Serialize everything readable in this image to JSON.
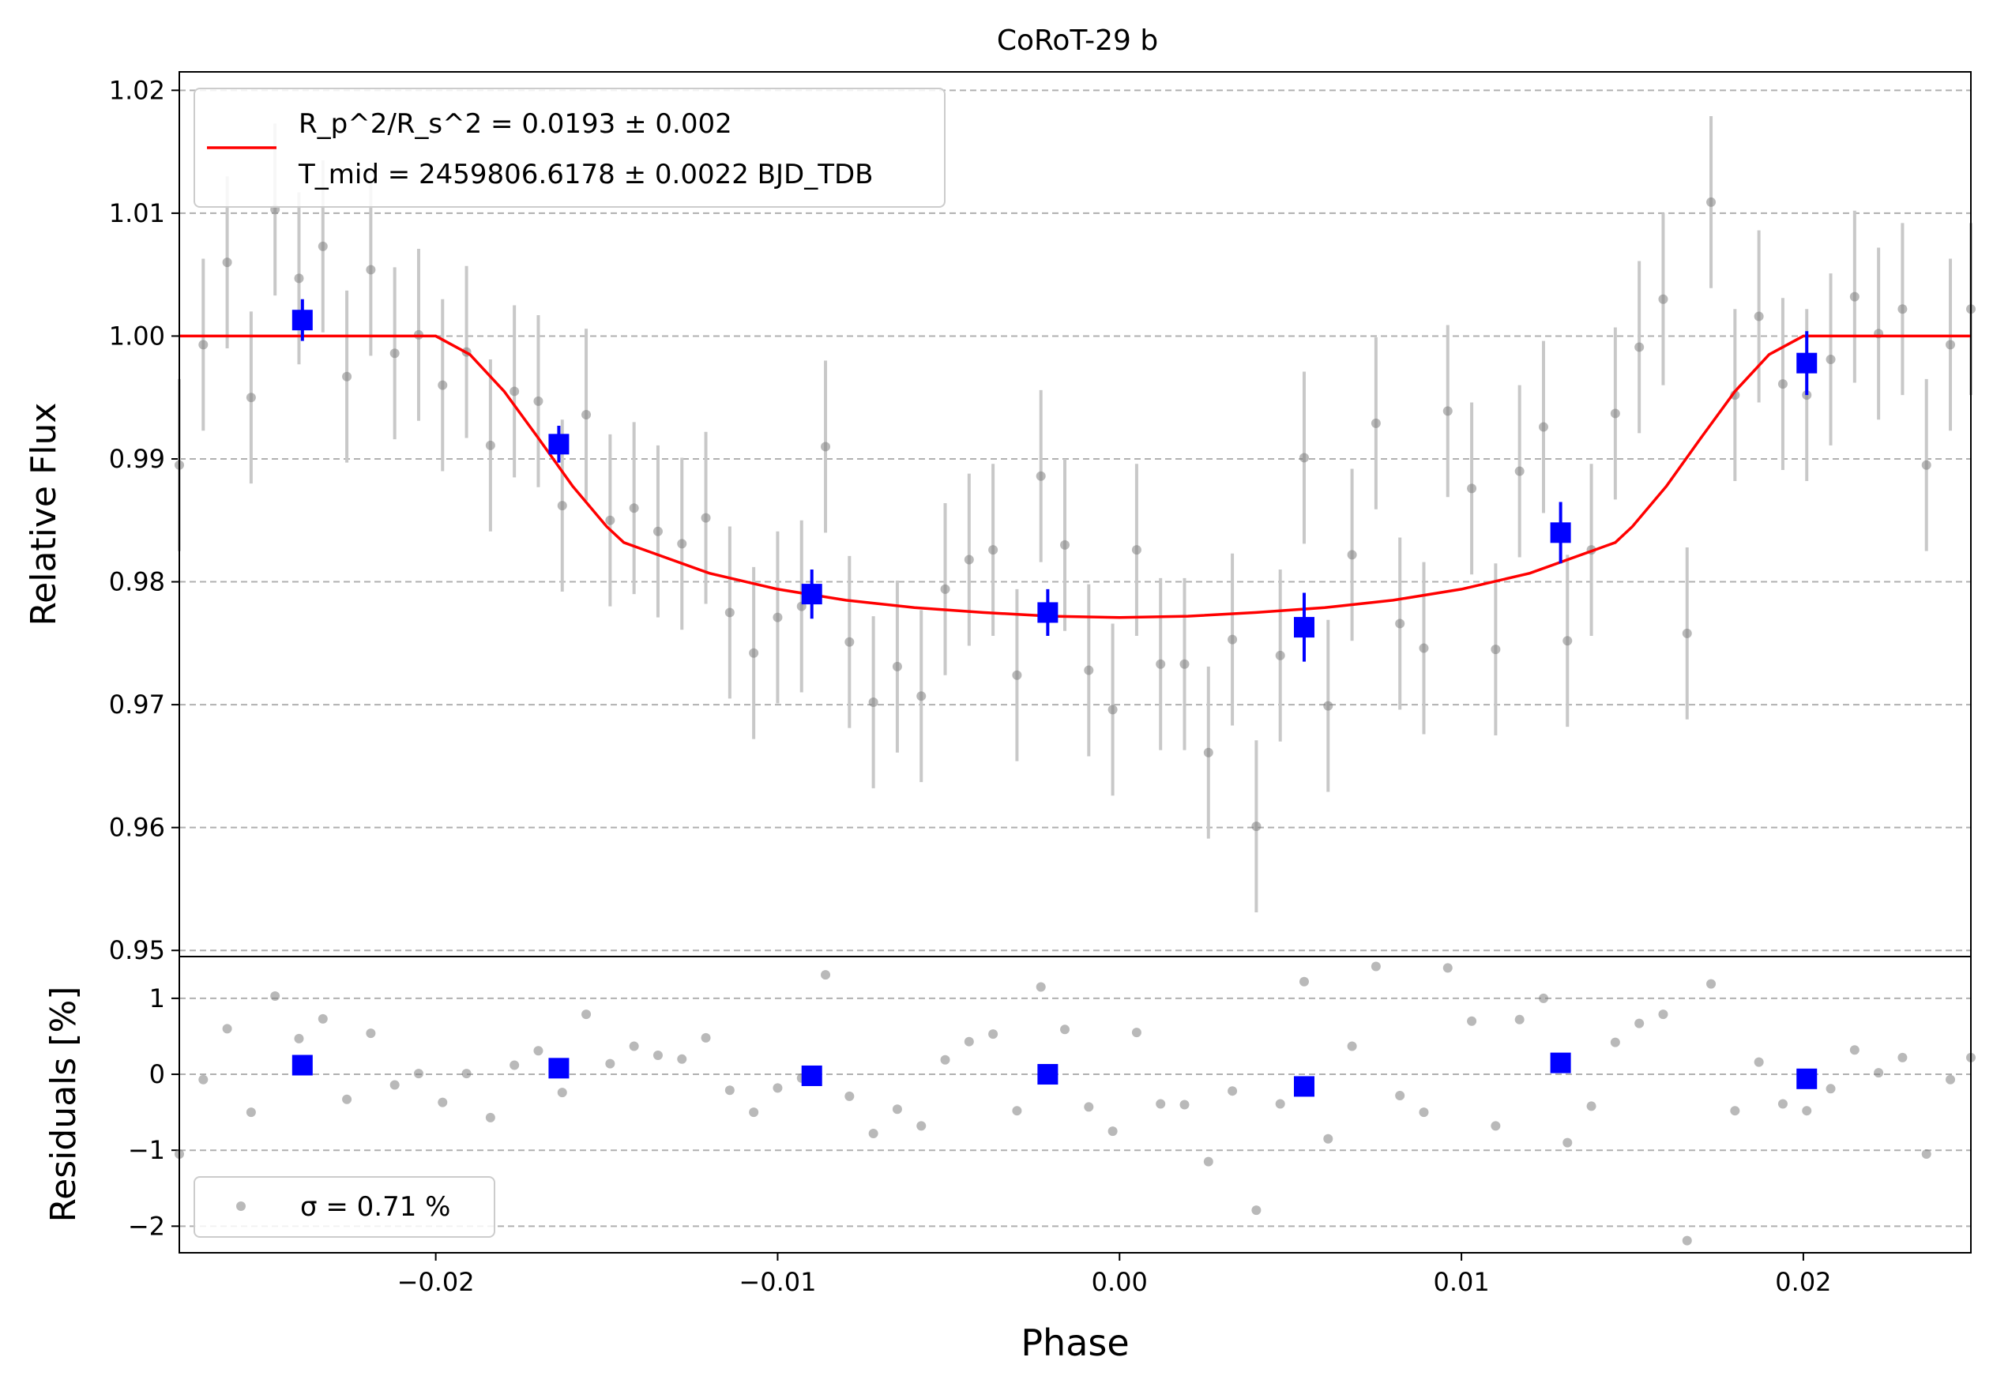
{
  "title": "CoRoT-29 b",
  "colors": {
    "observed": "#808080",
    "observed_err": "#c8c8c8",
    "binned": "#0000ff",
    "model": "#ff0000",
    "grid": "#b0b0b0",
    "legend_border": "#cccccc"
  },
  "chart_data": [
    {
      "panel": "flux",
      "type": "scatter",
      "title": "CoRoT-29 b",
      "xlabel": "Phase",
      "ylabel": "Relative Flux",
      "xlim": [
        -0.0275,
        0.0249
      ],
      "ylim": [
        0.9495,
        1.0215
      ],
      "yticks": [
        0.95,
        0.96,
        0.97,
        0.98,
        0.99,
        1.0,
        1.01,
        1.02
      ],
      "ytick_labels": [
        "0.95",
        "0.96",
        "0.97",
        "0.98",
        "0.99",
        "1.00",
        "1.01",
        "1.02"
      ],
      "grid": "horizontal dashed",
      "legend_position": "top-left",
      "legend": {
        "model_ratio_label": "R_p^2/R_s^2 = 0.0193 ± 0.002",
        "model_tmid_label": "T_mid = 2459806.6178 ± 0.0022 BJD_TDB"
      },
      "model": {
        "name": "transit model",
        "x": [
          -0.0275,
          -0.02,
          -0.019,
          -0.018,
          -0.017,
          -0.016,
          -0.015,
          -0.0145,
          -0.014,
          -0.012,
          -0.01,
          -0.008,
          -0.006,
          -0.004,
          -0.002,
          0.0,
          0.002,
          0.004,
          0.006,
          0.008,
          0.01,
          0.012,
          0.014,
          0.0145,
          0.015,
          0.016,
          0.017,
          0.018,
          0.019,
          0.02,
          0.0249
        ],
        "y": [
          1.0,
          1.0,
          0.9985,
          0.9955,
          0.9917,
          0.9878,
          0.9845,
          0.9832,
          0.9827,
          0.9807,
          0.9794,
          0.9785,
          0.9779,
          0.9775,
          0.9772,
          0.9771,
          0.9772,
          0.9775,
          0.9779,
          0.9785,
          0.9794,
          0.9807,
          0.9827,
          0.9832,
          0.9845,
          0.9878,
          0.9917,
          0.9955,
          0.9985,
          1.0,
          1.0
        ]
      },
      "observed": {
        "x": [
          -0.0275,
          -0.0268,
          -0.0261,
          -0.0254,
          -0.0247,
          -0.024,
          -0.0233,
          -0.0226,
          -0.0219,
          -0.0212,
          -0.0205,
          -0.0198,
          -0.0191,
          -0.0184,
          -0.0177,
          -0.017,
          -0.0163,
          -0.0156,
          -0.0149,
          -0.0142,
          -0.0135,
          -0.0128,
          -0.0121,
          -0.0114,
          -0.0107,
          -0.01,
          -0.0093,
          -0.0086,
          -0.0079,
          -0.0072,
          -0.0065,
          -0.0058,
          -0.0051,
          -0.0044,
          -0.0037,
          -0.003,
          -0.0023,
          -0.0016,
          -0.0009,
          -0.0002,
          0.0005,
          0.0012,
          0.0019,
          0.0026,
          0.0033,
          0.004,
          0.0047,
          0.0054,
          0.0061,
          0.0068,
          0.0075,
          0.0082,
          0.0089,
          0.0096,
          0.0103,
          0.011,
          0.0117,
          0.0124,
          0.0131,
          0.0138,
          0.0145,
          0.0152,
          0.0159,
          0.0166,
          0.0173,
          0.018,
          0.0187,
          0.0194,
          0.0201,
          0.0208,
          0.0215,
          0.0222,
          0.0229,
          0.0236,
          0.0243,
          0.0249
        ],
        "y": [
          0.9895,
          0.9993,
          1.006,
          0.995,
          1.0103,
          1.0047,
          1.0073,
          0.9967,
          1.0054,
          0.9986,
          1.0001,
          0.996,
          0.9987,
          0.9911,
          0.9955,
          0.9947,
          0.9862,
          0.9936,
          0.985,
          0.986,
          0.9841,
          0.9831,
          0.9852,
          0.9775,
          0.9742,
          0.9771,
          0.978,
          0.991,
          0.9751,
          0.9702,
          0.9731,
          0.9707,
          0.9794,
          0.9818,
          0.9826,
          0.9724,
          0.9886,
          0.983,
          0.9728,
          0.9696,
          0.9826,
          0.9733,
          0.9733,
          0.9661,
          0.9753,
          0.9601,
          0.974,
          0.9901,
          0.9699,
          0.9822,
          0.9929,
          0.9766,
          0.9746,
          0.9939,
          0.9876,
          0.9745,
          0.989,
          0.9926,
          0.9752,
          0.9826,
          0.9937,
          0.9991,
          1.003,
          0.9758,
          1.0109,
          0.9952,
          1.0016,
          0.9961,
          0.9952,
          0.9981,
          1.0032,
          1.0002,
          1.0022,
          0.9895,
          0.9993,
          1.0022
        ],
        "yerr": 0.007
      },
      "binned": {
        "x": [
          -0.0239,
          -0.0164,
          -0.009,
          -0.0021,
          0.0054,
          0.0129,
          0.0201
        ],
        "y": [
          1.0013,
          0.9912,
          0.979,
          0.9775,
          0.9763,
          0.984,
          0.9978
        ],
        "yerr": [
          0.0017,
          0.0015,
          0.002,
          0.0019,
          0.0028,
          0.0025,
          0.0026
        ]
      }
    },
    {
      "panel": "residuals",
      "type": "scatter",
      "xlabel": "Phase",
      "ylabel": "Residuals [%]",
      "xlim": [
        -0.0275,
        0.0249
      ],
      "ylim": [
        -2.35,
        1.55
      ],
      "xticks": [
        -0.02,
        -0.01,
        0.0,
        0.01,
        0.02
      ],
      "xtick_labels": [
        "−0.02",
        "−0.01",
        "0.00",
        "0.01",
        "0.02"
      ],
      "yticks": [
        -2,
        -1,
        0,
        1
      ],
      "ytick_labels": [
        "−2",
        "−1",
        "0",
        "1"
      ],
      "grid": "horizontal dashed",
      "legend_position": "bottom-left",
      "legend": {
        "sigma_label": "σ = 0.71 %"
      },
      "observed": {
        "x": [
          -0.0275,
          -0.0268,
          -0.0261,
          -0.0254,
          -0.0247,
          -0.024,
          -0.0233,
          -0.0226,
          -0.0219,
          -0.0212,
          -0.0205,
          -0.0198,
          -0.0191,
          -0.0184,
          -0.0177,
          -0.017,
          -0.0163,
          -0.0156,
          -0.0149,
          -0.0142,
          -0.0135,
          -0.0128,
          -0.0121,
          -0.0114,
          -0.0107,
          -0.01,
          -0.0093,
          -0.0086,
          -0.0079,
          -0.0072,
          -0.0065,
          -0.0058,
          -0.0051,
          -0.0044,
          -0.0037,
          -0.003,
          -0.0023,
          -0.0016,
          -0.0009,
          -0.0002,
          0.0005,
          0.0012,
          0.0019,
          0.0026,
          0.0033,
          0.004,
          0.0047,
          0.0054,
          0.0061,
          0.0068,
          0.0075,
          0.0082,
          0.0089,
          0.0096,
          0.0103,
          0.011,
          0.0117,
          0.0124,
          0.0131,
          0.0138,
          0.0145,
          0.0152,
          0.0159,
          0.0166,
          0.0173,
          0.018,
          0.0187,
          0.0194,
          0.0201,
          0.0208,
          0.0215,
          0.0222,
          0.0229,
          0.0236,
          0.0243,
          0.0249
        ],
        "y": [
          -1.05,
          -0.07,
          0.6,
          -0.5,
          1.03,
          0.47,
          0.73,
          -0.33,
          0.54,
          -0.14,
          0.01,
          -0.37,
          0.01,
          -0.57,
          0.12,
          0.31,
          -0.24,
          0.79,
          0.14,
          0.37,
          0.25,
          0.2,
          0.48,
          -0.21,
          -0.5,
          -0.18,
          -0.05,
          1.31,
          -0.29,
          -0.78,
          -0.46,
          -0.68,
          0.19,
          0.43,
          0.53,
          -0.48,
          1.15,
          0.59,
          -0.43,
          -0.75,
          0.55,
          -0.39,
          -0.4,
          -1.15,
          -0.22,
          -1.79,
          -0.39,
          1.22,
          -0.85,
          0.37,
          1.42,
          -0.28,
          -0.5,
          1.4,
          0.7,
          -0.68,
          0.72,
          1.0,
          -0.9,
          -0.42,
          0.42,
          0.67,
          0.79,
          -2.19,
          1.19,
          -0.48,
          0.16,
          -0.39,
          -0.48,
          -0.19,
          0.32,
          0.02,
          0.22,
          -1.05,
          -0.07,
          0.22
        ]
      },
      "binned": {
        "x": [
          -0.0239,
          -0.0164,
          -0.009,
          -0.0021,
          0.0054,
          0.0129,
          0.0201
        ],
        "y": [
          0.12,
          0.08,
          -0.02,
          0.0,
          -0.16,
          0.15,
          -0.06
        ]
      }
    }
  ]
}
